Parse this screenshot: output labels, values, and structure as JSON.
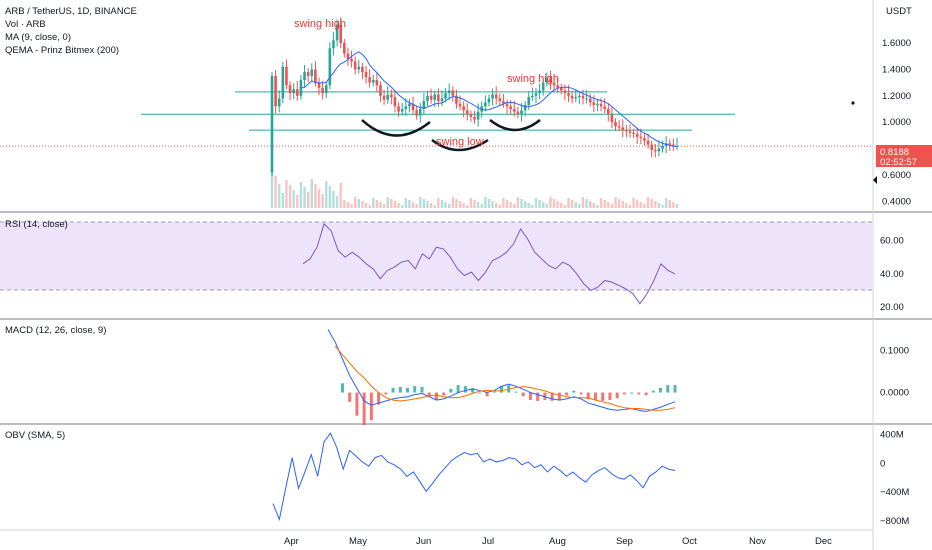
{
  "header": {
    "title": "ARB / TetherUS, 1D, BINANCE",
    "currency": "USDT",
    "indicators": [
      "Vol · ARB",
      "MA (9, close, 0)",
      "QEMA - Prinz Bitmex (200)"
    ]
  },
  "annotations": {
    "swing_high_1": "swing high",
    "swing_high_2": "swing high",
    "swing_low": "swing low"
  },
  "price_badge": {
    "price": "0.8188",
    "countdown": "02:52:57",
    "color": "#ef5350"
  },
  "panes": {
    "rsi_title": "RSI (14, close)",
    "macd_title": "MACD (12, 26, close, 9)",
    "obv_title": "OBV (SMA, 5)"
  },
  "colors": {
    "up": "#26a69a",
    "down": "#ef5350",
    "ma": "#2962ff",
    "rsi": "#7e57c2",
    "rsi_band": "#ede3fb",
    "macd_line": "#2962ff",
    "signal_line": "#ff6d00",
    "obv": "#2962ff",
    "hline": "#26a69a"
  },
  "chart_data": [
    {
      "type": "candlestick",
      "title": "ARB / TetherUS, 1D, BINANCE",
      "x_ticks": [
        "Apr",
        "May",
        "Jun",
        "Jul",
        "Aug",
        "Sep",
        "Oct",
        "Nov",
        "Dec"
      ],
      "y_ticks": [
        "1.6000",
        "1.4000",
        "1.2000",
        "1.0000",
        "0.6000",
        "0.4000"
      ],
      "ylim": [
        0.35,
        1.85
      ],
      "close_series": [
        1.35,
        1.12,
        1.18,
        1.42,
        1.28,
        1.22,
        1.25,
        1.2,
        1.32,
        1.38,
        1.35,
        1.4,
        1.3,
        1.26,
        1.22,
        1.28,
        1.56,
        1.62,
        1.74,
        1.6,
        1.52,
        1.48,
        1.46,
        1.4,
        1.42,
        1.38,
        1.34,
        1.3,
        1.32,
        1.28,
        1.2,
        1.17,
        1.21,
        1.19,
        1.12,
        1.08,
        1.1,
        1.12,
        1.14,
        1.09,
        1.05,
        1.1,
        1.16,
        1.2,
        1.17,
        1.21,
        1.16,
        1.18,
        1.22,
        1.24,
        1.2,
        1.14,
        1.12,
        1.09,
        1.06,
        1.04,
        1.02,
        1.08,
        1.12,
        1.15,
        1.18,
        1.21,
        1.18,
        1.16,
        1.14,
        1.12,
        1.1,
        1.08,
        1.06,
        1.09,
        1.13,
        1.19,
        1.2,
        1.22,
        1.24,
        1.3,
        1.33,
        1.3,
        1.28,
        1.26,
        1.24,
        1.22,
        1.2,
        1.18,
        1.19,
        1.2,
        1.18,
        1.18,
        1.15,
        1.13,
        1.14,
        1.12,
        1.1,
        1.06,
        1.0,
        0.97,
        0.96,
        0.94,
        0.93,
        0.92,
        0.91,
        0.89,
        0.88,
        0.86,
        0.83,
        0.79,
        0.78,
        0.8,
        0.82,
        0.84,
        0.83,
        0.82,
        0.82
      ],
      "horizontal_levels": [
        1.23,
        1.06,
        0.94
      ],
      "last_price": 0.8188
    },
    {
      "type": "line",
      "title": "RSI (14, close)",
      "y_ticks": [
        "60.00",
        "40.00",
        "20.00"
      ],
      "ylim": [
        14,
        76
      ],
      "band": [
        30,
        70
      ],
      "values": [
        46,
        49,
        56,
        70,
        66,
        54,
        50,
        53,
        50,
        46,
        43,
        37,
        42,
        44,
        47,
        48,
        43,
        52,
        49,
        56,
        55,
        50,
        43,
        39,
        41,
        36,
        41,
        48,
        50,
        53,
        58,
        67,
        61,
        53,
        49,
        45,
        43,
        47,
        45,
        40,
        34,
        30,
        32,
        36,
        35,
        33,
        31,
        28,
        22,
        28,
        36,
        46,
        42,
        40
      ]
    },
    {
      "type": "line+bar",
      "title": "MACD (12, 26, close, 9)",
      "y_ticks": [
        "0.1000",
        "0.0000"
      ],
      "ylim": [
        -0.07,
        0.17
      ],
      "macd": [
        0.15,
        0.12,
        0.08,
        0.04,
        0.01,
        -0.02,
        -0.03,
        -0.025,
        -0.02,
        -0.015,
        -0.012,
        -0.01,
        -0.005,
        -0.002,
        -0.01,
        -0.018,
        -0.015,
        -0.008,
        0.0,
        0.005,
        0.008,
        0.005,
        0.0,
        0.005,
        0.015,
        0.02,
        0.015,
        0.008,
        0.0,
        -0.005,
        -0.01,
        -0.015,
        -0.018,
        -0.015,
        -0.01,
        -0.015,
        -0.025,
        -0.03,
        -0.035,
        -0.04,
        -0.042,
        -0.04,
        -0.038,
        -0.042,
        -0.045,
        -0.04,
        -0.035,
        -0.028,
        -0.022
      ],
      "signal": [
        0.11,
        0.09,
        0.07,
        0.05,
        0.035,
        0.015,
        0.0,
        -0.012,
        -0.018,
        -0.02,
        -0.018,
        -0.015,
        -0.012,
        -0.008,
        -0.006,
        -0.01,
        -0.012,
        -0.012,
        -0.008,
        -0.002,
        0.003,
        0.005,
        0.004,
        0.004,
        0.008,
        0.012,
        0.014,
        0.012,
        0.008,
        0.004,
        -0.002,
        -0.006,
        -0.01,
        -0.012,
        -0.012,
        -0.013,
        -0.018,
        -0.022,
        -0.026,
        -0.032,
        -0.036,
        -0.038,
        -0.038,
        -0.04,
        -0.042,
        -0.042,
        -0.04,
        -0.036,
        -0.03
      ]
    },
    {
      "type": "line",
      "title": "OBV (SMA, 5)",
      "y_ticks": [
        "400M",
        "0",
        "−400M",
        "−800M"
      ],
      "ylim": [
        -900,
        520
      ],
      "values": [
        -560,
        -780,
        -340,
        80,
        -350,
        -120,
        120,
        -180,
        300,
        420,
        220,
        -80,
        180,
        100,
        20,
        -40,
        80,
        110,
        20,
        -20,
        -80,
        -180,
        -120,
        -250,
        -390,
        -280,
        -160,
        -60,
        40,
        100,
        150,
        120,
        140,
        20,
        60,
        20,
        40,
        80,
        60,
        -20,
        20,
        -60,
        -20,
        -120,
        -40,
        -100,
        -180,
        -120,
        -200,
        -260,
        -160,
        -100,
        -60,
        -140,
        -200,
        -220,
        -160,
        -240,
        -340,
        -180,
        -120,
        -40,
        -80,
        -100
      ]
    }
  ]
}
